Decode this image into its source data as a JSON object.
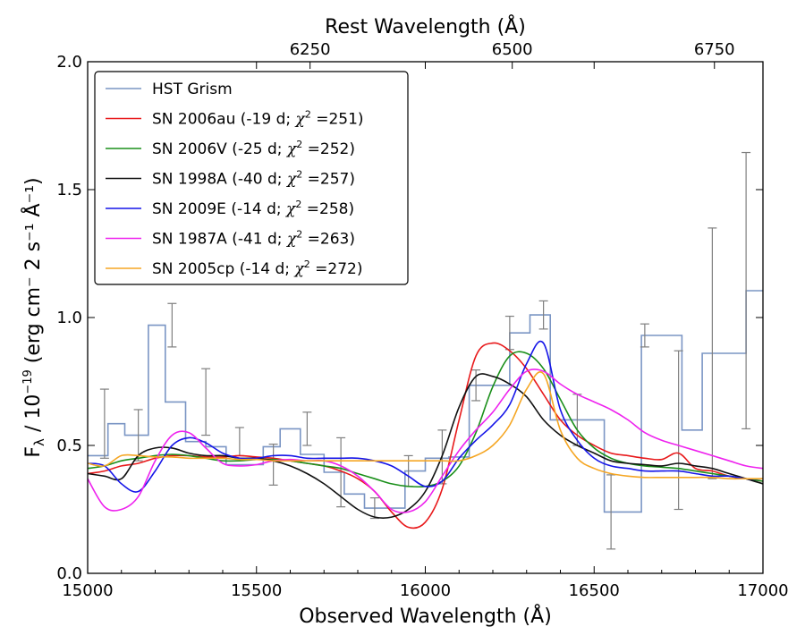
{
  "chart_data": {
    "type": "line",
    "xlabel": "Observed Wavelength (Å)",
    "ylabel": "F",
    "ylabel_sub": "λ",
    "ylabel_rest": " / 10",
    "ylabel_exp": "−19",
    "ylabel_units": " (erg cm⁻ 2 s⁻¹ Å⁻¹)",
    "top_xlabel": "Rest Wavelength (Å)",
    "xlim": [
      15000,
      17000
    ],
    "ylim": [
      0.0,
      2.0
    ],
    "x_ticks": [
      15000,
      15500,
      16000,
      16500,
      17000
    ],
    "x_tick_labels": [
      "15000",
      "15500",
      "16000",
      "16500",
      "17000"
    ],
    "y_ticks": [
      0.0,
      0.5,
      1.0,
      1.5,
      2.0
    ],
    "y_tick_labels": [
      "0.0",
      "0.5",
      "1.0",
      "1.5",
      "2.0"
    ],
    "top_ticks": [
      6250,
      6500,
      6750
    ],
    "top_tick_labels": [
      "6250",
      "6500",
      "6750"
    ],
    "rest_range": [
      5975,
      6810
    ],
    "legend_position": "top-left",
    "hst": {
      "name": "HST Grism",
      "color": "#7a95c4",
      "edges": [
        15000,
        15060,
        15110,
        15180,
        15230,
        15290,
        15350,
        15410,
        15460,
        15520,
        15570,
        15630,
        15700,
        15760,
        15820,
        15890,
        15940,
        16000,
        16070,
        16130,
        16190,
        16250,
        16310,
        16370,
        16420,
        16480,
        16530,
        16590,
        16640,
        16700,
        16760,
        16820,
        16880,
        16950,
        17000
      ],
      "values": [
        0.46,
        0.585,
        0.54,
        0.97,
        0.67,
        0.515,
        0.495,
        0.425,
        0.425,
        0.495,
        0.565,
        0.465,
        0.395,
        0.31,
        0.255,
        0.255,
        0.4,
        0.45,
        0.455,
        0.735,
        0.735,
        0.94,
        1.01,
        0.6,
        0.6,
        0.6,
        0.24,
        0.24,
        0.93,
        0.93,
        0.56,
        0.86,
        0.86,
        1.105
      ],
      "errors": [
        {
          "x": 15050,
          "y": 0.585,
          "err": 0.135
        },
        {
          "x": 15150,
          "y": 0.54,
          "err": 0.1
        },
        {
          "x": 15250,
          "y": 0.97,
          "err": 0.085
        },
        {
          "x": 15350,
          "y": 0.67,
          "err": 0.13
        },
        {
          "x": 15450,
          "y": 0.515,
          "err": 0.055
        },
        {
          "x": 15550,
          "y": 0.425,
          "err": 0.08
        },
        {
          "x": 15650,
          "y": 0.565,
          "err": 0.065
        },
        {
          "x": 15750,
          "y": 0.395,
          "err": 0.135
        },
        {
          "x": 15850,
          "y": 0.255,
          "err": 0.04
        },
        {
          "x": 15950,
          "y": 0.4,
          "err": 0.06
        },
        {
          "x": 16050,
          "y": 0.455,
          "err": 0.105
        },
        {
          "x": 16150,
          "y": 0.735,
          "err": 0.06
        },
        {
          "x": 16250,
          "y": 0.94,
          "err": 0.065
        },
        {
          "x": 16350,
          "y": 1.01,
          "err": 0.055
        },
        {
          "x": 16450,
          "y": 0.6,
          "err": 0.1
        },
        {
          "x": 16550,
          "y": 0.24,
          "err": 0.145
        },
        {
          "x": 16650,
          "y": 0.93,
          "err": 0.045
        },
        {
          "x": 16750,
          "y": 0.56,
          "err": 0.31
        },
        {
          "x": 16850,
          "y": 0.86,
          "err": 0.49
        },
        {
          "x": 16950,
          "y": 1.105,
          "err": 0.54
        }
      ]
    },
    "series": [
      {
        "name": "SN 2006au",
        "phase": "-19 d",
        "chi2": "251",
        "color": "#e8191b",
        "x": [
          15000,
          15050,
          15100,
          15150,
          15200,
          15250,
          15300,
          15350,
          15400,
          15450,
          15500,
          15550,
          15600,
          15650,
          15700,
          15750,
          15800,
          15850,
          15900,
          15950,
          16000,
          16050,
          16100,
          16150,
          16200,
          16250,
          16300,
          16350,
          16400,
          16450,
          16500,
          16550,
          16600,
          16650,
          16700,
          16750,
          16800,
          16850,
          16900,
          16950,
          17000
        ],
        "y": [
          0.39,
          0.4,
          0.42,
          0.43,
          0.45,
          0.46,
          0.46,
          0.455,
          0.455,
          0.46,
          0.455,
          0.45,
          0.44,
          0.43,
          0.42,
          0.4,
          0.37,
          0.32,
          0.24,
          0.18,
          0.2,
          0.33,
          0.6,
          0.85,
          0.9,
          0.87,
          0.8,
          0.7,
          0.6,
          0.54,
          0.5,
          0.47,
          0.46,
          0.45,
          0.445,
          0.47,
          0.41,
          0.4,
          0.38,
          0.37,
          0.36
        ]
      },
      {
        "name": "SN 2006V",
        "phase": "-25 d",
        "chi2": "252",
        "color": "#1a8f1a",
        "x": [
          15000,
          15050,
          15100,
          15150,
          15200,
          15250,
          15300,
          15350,
          15400,
          15450,
          15500,
          15550,
          15600,
          15650,
          15700,
          15750,
          15800,
          15850,
          15900,
          15950,
          16000,
          16050,
          16100,
          16150,
          16200,
          16250,
          16300,
          16350,
          16400,
          16450,
          16500,
          16550,
          16600,
          16650,
          16700,
          16750,
          16800,
          16850,
          16900,
          16950,
          17000
        ],
        "y": [
          0.41,
          0.42,
          0.44,
          0.45,
          0.46,
          0.465,
          0.46,
          0.45,
          0.44,
          0.44,
          0.445,
          0.445,
          0.44,
          0.43,
          0.42,
          0.41,
          0.39,
          0.37,
          0.35,
          0.34,
          0.34,
          0.36,
          0.42,
          0.55,
          0.73,
          0.85,
          0.86,
          0.8,
          0.68,
          0.56,
          0.49,
          0.45,
          0.43,
          0.42,
          0.415,
          0.41,
          0.4,
          0.39,
          0.38,
          0.37,
          0.36
        ]
      },
      {
        "name": "SN 1998A",
        "phase": "-40 d",
        "chi2": "257",
        "color": "#111111",
        "x": [
          15000,
          15050,
          15100,
          15150,
          15200,
          15250,
          15300,
          15350,
          15400,
          15450,
          15500,
          15550,
          15600,
          15650,
          15700,
          15750,
          15800,
          15850,
          15900,
          15950,
          16000,
          16050,
          16100,
          16150,
          16200,
          16250,
          16300,
          16350,
          16400,
          16450,
          16500,
          16550,
          16600,
          16650,
          16700,
          16750,
          16800,
          16850,
          16900,
          16950,
          17000
        ],
        "y": [
          0.39,
          0.38,
          0.37,
          0.46,
          0.49,
          0.49,
          0.47,
          0.46,
          0.46,
          0.45,
          0.45,
          0.44,
          0.42,
          0.39,
          0.35,
          0.3,
          0.25,
          0.22,
          0.22,
          0.25,
          0.32,
          0.46,
          0.65,
          0.77,
          0.77,
          0.74,
          0.69,
          0.6,
          0.54,
          0.5,
          0.47,
          0.44,
          0.43,
          0.425,
          0.42,
          0.43,
          0.42,
          0.41,
          0.39,
          0.37,
          0.35
        ]
      },
      {
        "name": "SN 2009E",
        "phase": "-14 d",
        "chi2": "258",
        "color": "#1515e8",
        "x": [
          15000,
          15050,
          15100,
          15150,
          15200,
          15250,
          15300,
          15350,
          15400,
          15450,
          15500,
          15550,
          15600,
          15650,
          15700,
          15750,
          15800,
          15850,
          15900,
          15950,
          16000,
          16050,
          16100,
          16150,
          16200,
          16250,
          16300,
          16350,
          16400,
          16450,
          16500,
          16550,
          16600,
          16650,
          16700,
          16750,
          16800,
          16850,
          16900,
          16950,
          17000
        ],
        "y": [
          0.43,
          0.42,
          0.35,
          0.32,
          0.4,
          0.5,
          0.53,
          0.51,
          0.47,
          0.45,
          0.45,
          0.46,
          0.46,
          0.45,
          0.45,
          0.45,
          0.45,
          0.44,
          0.42,
          0.38,
          0.34,
          0.36,
          0.45,
          0.52,
          0.58,
          0.66,
          0.82,
          0.9,
          0.64,
          0.52,
          0.45,
          0.42,
          0.41,
          0.4,
          0.4,
          0.4,
          0.39,
          0.38,
          0.38,
          0.37,
          0.37
        ]
      },
      {
        "name": "SN 1987A",
        "phase": "-41 d",
        "chi2": "263",
        "color": "#ee22ee",
        "x": [
          15000,
          15050,
          15100,
          15150,
          15200,
          15250,
          15300,
          15350,
          15400,
          15450,
          15500,
          15550,
          15600,
          15650,
          15700,
          15750,
          15800,
          15850,
          15900,
          15950,
          16000,
          16050,
          16100,
          16150,
          16200,
          16250,
          16300,
          16350,
          16400,
          16450,
          16500,
          16550,
          16600,
          16650,
          16700,
          16750,
          16800,
          16850,
          16900,
          16950,
          17000
        ],
        "y": [
          0.37,
          0.26,
          0.25,
          0.3,
          0.44,
          0.54,
          0.55,
          0.49,
          0.43,
          0.42,
          0.425,
          0.44,
          0.445,
          0.44,
          0.44,
          0.42,
          0.38,
          0.32,
          0.25,
          0.24,
          0.28,
          0.38,
          0.48,
          0.56,
          0.63,
          0.72,
          0.79,
          0.79,
          0.74,
          0.7,
          0.67,
          0.64,
          0.6,
          0.55,
          0.52,
          0.5,
          0.48,
          0.46,
          0.44,
          0.42,
          0.41
        ]
      },
      {
        "name": "SN 2005cp",
        "phase": "-14 d",
        "chi2": "272",
        "color": "#f5a623",
        "x": [
          15000,
          15050,
          15100,
          15150,
          15200,
          15250,
          15300,
          15350,
          15400,
          15450,
          15500,
          15550,
          15600,
          15650,
          15700,
          15750,
          15800,
          15850,
          15900,
          15950,
          16000,
          16050,
          16100,
          16150,
          16200,
          16250,
          16300,
          16350,
          16400,
          16450,
          16500,
          16550,
          16600,
          16650,
          16700,
          16750,
          16800,
          16850,
          16900,
          16950,
          17000
        ],
        "y": [
          0.43,
          0.42,
          0.46,
          0.46,
          0.455,
          0.455,
          0.45,
          0.45,
          0.45,
          0.445,
          0.445,
          0.44,
          0.44,
          0.44,
          0.44,
          0.44,
          0.44,
          0.44,
          0.44,
          0.44,
          0.44,
          0.44,
          0.44,
          0.46,
          0.5,
          0.58,
          0.72,
          0.78,
          0.56,
          0.45,
          0.41,
          0.39,
          0.38,
          0.375,
          0.375,
          0.375,
          0.375,
          0.375,
          0.37,
          0.37,
          0.37
        ]
      }
    ]
  }
}
